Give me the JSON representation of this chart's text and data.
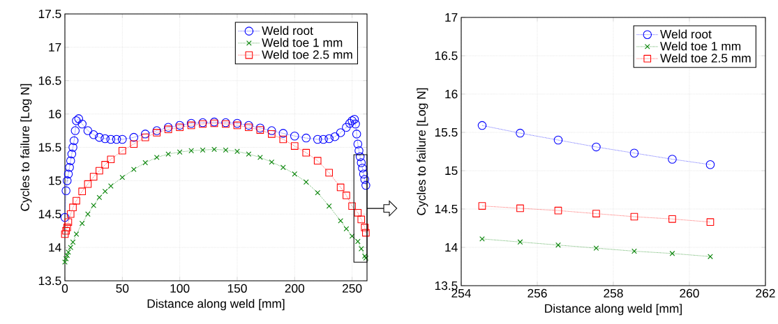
{
  "chart_data": [
    {
      "type": "line",
      "xlabel": "Distance along weld [mm]",
      "ylabel": "Cycles to failure [Log N]",
      "xlim": [
        0,
        263
      ],
      "ylim": [
        13.5,
        17.5
      ],
      "xticks": [
        0,
        50,
        100,
        150,
        200,
        250
      ],
      "yticks": [
        13.5,
        14,
        14.5,
        15,
        15.5,
        16,
        16.5,
        17,
        17.5
      ],
      "grid": true,
      "legend": "top right",
      "line_style": "dotted",
      "series": [
        {
          "name": "Weld root",
          "color": "#0000ff",
          "marker": "circle",
          "x": [
            0,
            1,
            2,
            3,
            4,
            5,
            6,
            7,
            8,
            9,
            10,
            12,
            15,
            20,
            25,
            30,
            35,
            40,
            45,
            50,
            60,
            70,
            80,
            90,
            100,
            110,
            120,
            130,
            140,
            150,
            160,
            170,
            180,
            190,
            200,
            210,
            220,
            225,
            230,
            235,
            240,
            245,
            248,
            250,
            252,
            253,
            254,
            255,
            256,
            257,
            258,
            259,
            260,
            261,
            262
          ],
          "values": [
            14.45,
            14.85,
            15.0,
            15.1,
            15.2,
            15.3,
            15.4,
            15.5,
            15.6,
            15.75,
            15.9,
            15.93,
            15.85,
            15.75,
            15.69,
            15.65,
            15.63,
            15.62,
            15.62,
            15.62,
            15.65,
            15.7,
            15.75,
            15.8,
            15.83,
            15.86,
            15.87,
            15.88,
            15.87,
            15.86,
            15.83,
            15.79,
            15.75,
            15.71,
            15.67,
            15.64,
            15.62,
            15.62,
            15.63,
            15.66,
            15.72,
            15.8,
            15.86,
            15.9,
            15.92,
            15.85,
            15.7,
            15.55,
            15.45,
            15.36,
            15.27,
            15.19,
            15.1,
            15.02,
            14.93
          ]
        },
        {
          "name": "Weld toe 1 mm",
          "color": "#008000",
          "marker": "cross",
          "x": [
            0,
            1,
            2,
            3,
            5,
            7,
            10,
            15,
            20,
            25,
            30,
            35,
            40,
            50,
            60,
            70,
            80,
            90,
            100,
            110,
            120,
            130,
            140,
            150,
            160,
            170,
            180,
            190,
            200,
            210,
            220,
            230,
            240,
            245,
            250,
            255,
            258,
            261,
            262
          ],
          "values": [
            13.78,
            13.83,
            13.88,
            13.93,
            14.0,
            14.08,
            14.2,
            14.36,
            14.5,
            14.63,
            14.75,
            14.84,
            14.92,
            15.05,
            15.17,
            15.27,
            15.35,
            15.4,
            15.43,
            15.45,
            15.46,
            15.47,
            15.46,
            15.44,
            15.4,
            15.35,
            15.28,
            15.2,
            15.1,
            14.98,
            14.82,
            14.62,
            14.4,
            14.28,
            14.17,
            14.09,
            13.98,
            13.87,
            13.84
          ]
        },
        {
          "name": "Weld toe 2.5 mm",
          "color": "#ff0000",
          "marker": "square",
          "x": [
            0,
            1,
            2,
            3,
            5,
            7,
            10,
            15,
            20,
            25,
            30,
            35,
            40,
            50,
            60,
            70,
            80,
            90,
            100,
            110,
            120,
            130,
            140,
            150,
            160,
            170,
            180,
            190,
            200,
            210,
            220,
            230,
            240,
            245,
            250,
            255,
            258,
            261,
            262
          ],
          "values": [
            14.2,
            14.25,
            14.3,
            14.38,
            14.5,
            14.6,
            14.7,
            14.84,
            14.95,
            15.06,
            15.15,
            15.24,
            15.32,
            15.45,
            15.55,
            15.65,
            15.72,
            15.77,
            15.8,
            15.83,
            15.85,
            15.86,
            15.85,
            15.83,
            15.8,
            15.76,
            15.7,
            15.62,
            15.52,
            15.42,
            15.3,
            15.12,
            14.9,
            14.78,
            14.62,
            14.52,
            14.42,
            14.3,
            14.22
          ]
        }
      ]
    },
    {
      "type": "line",
      "xlabel": "Distance along weld [mm]",
      "ylabel": "Cycles to failure [Log N]",
      "xlim": [
        254,
        262
      ],
      "ylim": [
        13.5,
        17
      ],
      "xticks": [
        254,
        256,
        258,
        260,
        262
      ],
      "yticks": [
        13.5,
        14,
        14.5,
        15,
        15.5,
        16,
        16.5,
        17
      ],
      "grid": true,
      "legend": "top right",
      "line_style": "dotted",
      "series": [
        {
          "name": "Weld root",
          "color": "#0000ff",
          "marker": "circle",
          "x": [
            254.55,
            255.55,
            256.55,
            257.55,
            258.55,
            259.55,
            260.55
          ],
          "values": [
            15.59,
            15.49,
            15.4,
            15.31,
            15.23,
            15.15,
            15.08
          ]
        },
        {
          "name": "Weld toe 1 mm",
          "color": "#008000",
          "marker": "cross",
          "x": [
            254.55,
            255.55,
            256.55,
            257.55,
            258.55,
            259.55,
            260.55
          ],
          "values": [
            14.11,
            14.07,
            14.03,
            13.99,
            13.95,
            13.92,
            13.88
          ]
        },
        {
          "name": "Weld toe 2.5 mm",
          "color": "#ff0000",
          "marker": "square",
          "x": [
            254.55,
            255.55,
            256.55,
            257.55,
            258.55,
            259.55,
            260.55
          ],
          "values": [
            14.54,
            14.51,
            14.48,
            14.44,
            14.4,
            14.37,
            14.33
          ]
        }
      ]
    }
  ]
}
